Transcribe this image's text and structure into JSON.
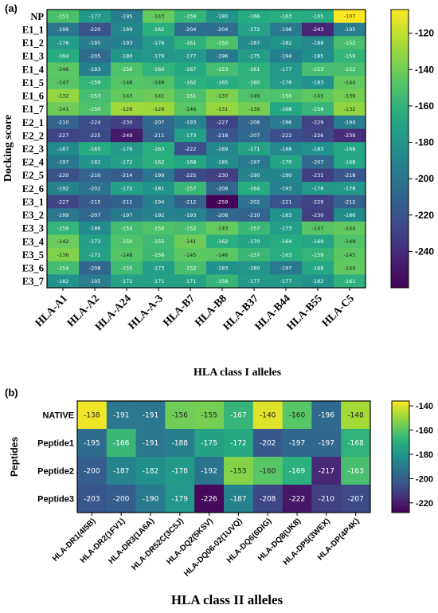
{
  "chart_data": [
    {
      "type": "heatmap",
      "panel_label": "(a)",
      "ylabel": "Docking score",
      "xlabel": "HLA class I alleles",
      "rows": [
        "NP",
        "E1_1",
        "E1_2",
        "E1_3",
        "E1_4",
        "E1_5",
        "E1_6",
        "E1_7",
        "E2_1",
        "E2_2",
        "E2_3",
        "E2_4",
        "E2_5",
        "E2_6",
        "E3_1",
        "E3_2",
        "E3_3",
        "E3_4",
        "E3_5",
        "E3_6",
        "E3_7"
      ],
      "columns": [
        "HLA-A1",
        "HLA-A2",
        "HLA-A24",
        "HLA-A-3",
        "HLA-B7",
        "HLA-B8",
        "HLA-B37",
        "HLA-B44",
        "HLA-B55",
        "HLA-C5"
      ],
      "values": [
        [
          -151,
          -177,
          -195,
          -143,
          -159,
          -180,
          -166,
          -163,
          -165,
          -107
        ],
        [
          -199,
          -220,
          -189,
          -162,
          -204,
          -204,
          -172,
          -196,
          -243,
          -195
        ],
        [
          -176,
          -195,
          -193,
          -176,
          -161,
          -150,
          -187,
          -182,
          -188,
          -152
        ],
        [
          -164,
          -205,
          -180,
          -179,
          -177,
          -196,
          -175,
          -194,
          -185,
          -159
        ],
        [
          -146,
          -193,
          -150,
          -160,
          -167,
          -153,
          -161,
          -177,
          -153,
          -152
        ],
        [
          -147,
          -159,
          -148,
          -149,
          -162,
          -165,
          -160,
          -176,
          -183,
          -144
        ],
        [
          -132,
          -153,
          -143,
          -141,
          -151,
          -137,
          -149,
          -150,
          -145,
          -139
        ],
        [
          -141,
          -150,
          -128,
          -129,
          -146,
          -131,
          -139,
          -168,
          -158,
          -132
        ],
        [
          -210,
          -224,
          -230,
          -207,
          -193,
          -227,
          -208,
          -196,
          -229,
          -194
        ],
        [
          -227,
          -225,
          -249,
          -211,
          -173,
          -218,
          -207,
          -222,
          -226,
          -239
        ],
        [
          -187,
          -165,
          -176,
          -163,
          -222,
          -189,
          -171,
          -188,
          -183,
          -168
        ],
        [
          -197,
          -182,
          -172,
          -162,
          -168,
          -185,
          -197,
          -170,
          -207,
          -168
        ],
        [
          -220,
          -210,
          -214,
          -199,
          -225,
          -230,
          -190,
          -190,
          -231,
          -218
        ],
        [
          -192,
          -202,
          -172,
          -181,
          -157,
          -208,
          -164,
          -193,
          -178,
          -178
        ],
        [
          -227,
          -215,
          -211,
          -194,
          -212,
          -259,
          -202,
          -221,
          -229,
          -212
        ],
        [
          -199,
          -207,
          -197,
          -192,
          -193,
          -208,
          -210,
          -183,
          -230,
          -186
        ],
        [
          -159,
          -186,
          -154,
          -150,
          -152,
          -143,
          -157,
          -173,
          -147,
          -144
        ],
        [
          -142,
          -173,
          -150,
          -155,
          -141,
          -162,
          -170,
          -164,
          -169,
          -149
        ],
        [
          -136,
          -171,
          -148,
          -156,
          -145,
          -146,
          -157,
          -163,
          -159,
          -145
        ],
        [
          -154,
          -208,
          -155,
          -173,
          -152,
          -183,
          -180,
          -197,
          -168,
          -144
        ],
        [
          -182,
          -195,
          -172,
          -171,
          -171,
          -158,
          -177,
          -177,
          -182,
          -161
        ]
      ],
      "colorbar": {
        "min": -260,
        "max": -107,
        "ticks": [
          -120,
          -140,
          -160,
          -180,
          -200,
          -220,
          -240
        ]
      }
    },
    {
      "type": "heatmap",
      "panel_label": "(b)",
      "ylabel": "Peptides",
      "xlabel": "HLA class II alleles",
      "rows": [
        "NATIVE",
        "Peptide1",
        "Peptide2",
        "Peptide3"
      ],
      "columns": [
        "HLA-DR1(4I5B)",
        "HLA-DR2(1FV1)",
        "HLA-DR3(1A6A)",
        "HLA-DR52C(3C5J)",
        "HLA-DQ2(5KSV)",
        "HLA-DQ06-02(1UVQ)",
        "HLA-DQ6(6DIG)",
        "HLA-DQ8(UK8)",
        "HLA-DP5(3WEX)",
        "HLA-DP(4P4K)"
      ],
      "values": [
        [
          -138,
          -191,
          -191,
          -156,
          -155,
          -167,
          -140,
          -160,
          -196,
          -148
        ],
        [
          -195,
          -166,
          -191,
          -188,
          -175,
          -172,
          -202,
          -197,
          -197,
          -168
        ],
        [
          -200,
          -187,
          -182,
          -178,
          -192,
          -153,
          -160,
          -169,
          -217,
          -163
        ],
        [
          -203,
          -200,
          -190,
          -179,
          -226,
          -187,
          -208,
          -222,
          -210,
          -207
        ]
      ],
      "colorbar": {
        "min": -228,
        "max": -136,
        "ticks": [
          -140,
          -160,
          -180,
          -200,
          -220
        ]
      }
    }
  ]
}
